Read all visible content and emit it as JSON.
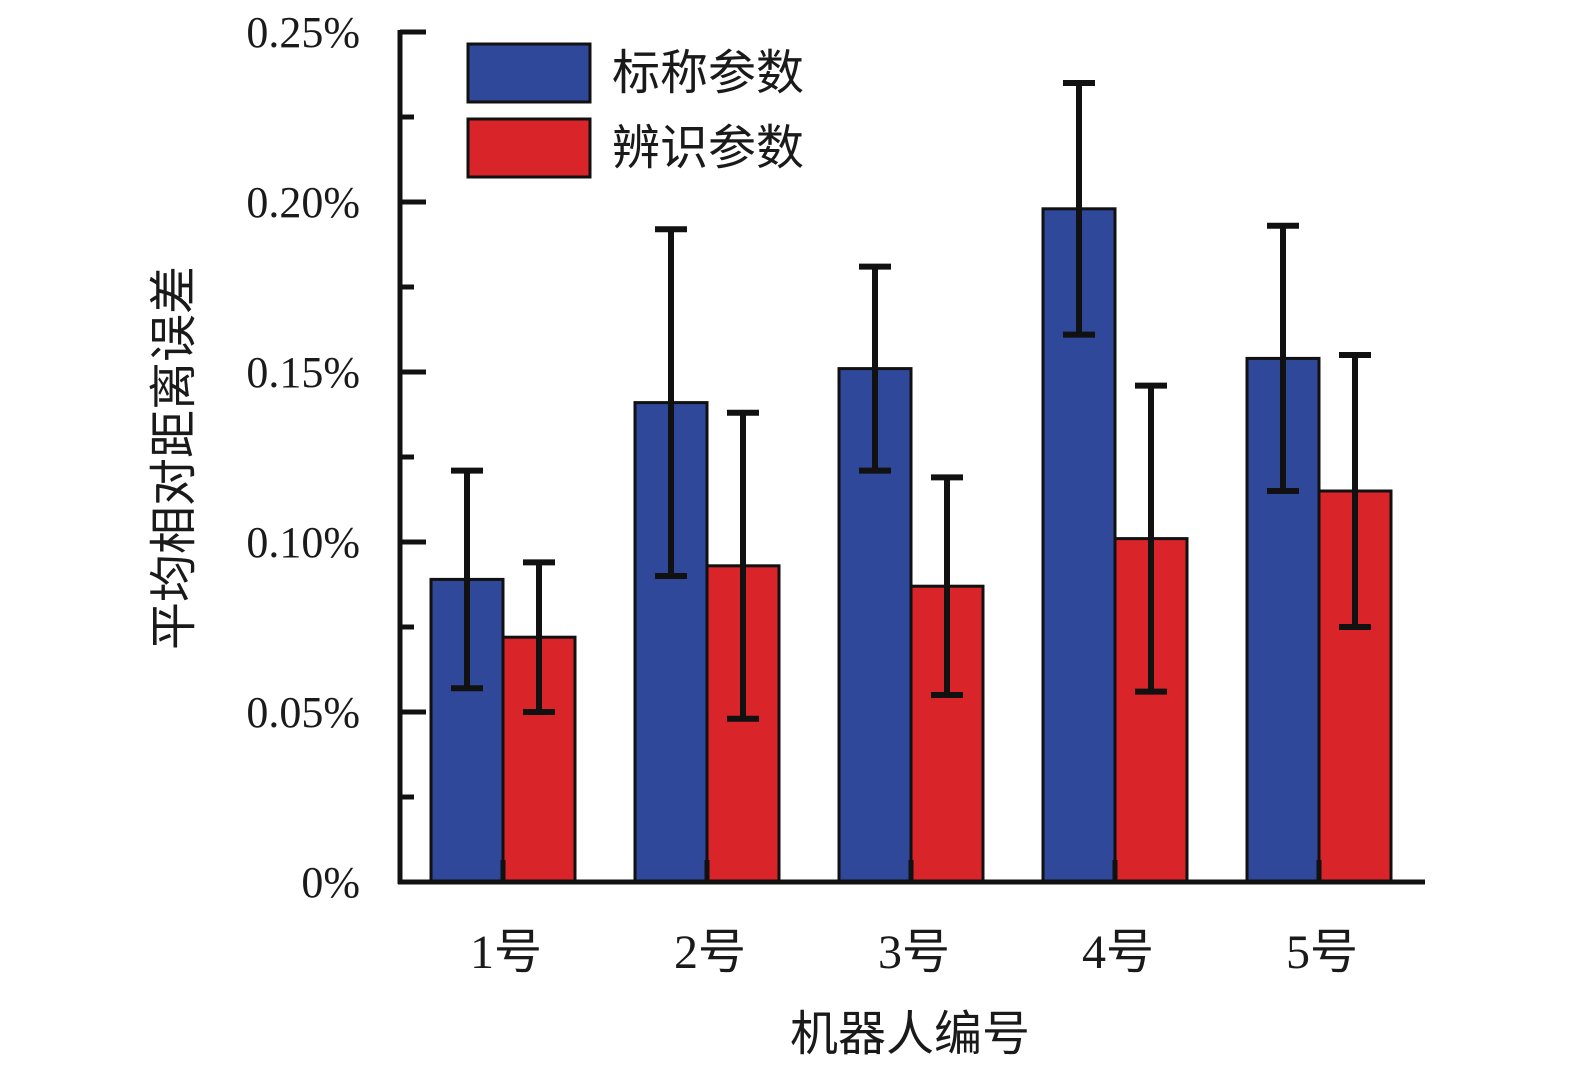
{
  "chart_data": {
    "type": "bar",
    "categories": [
      "1号",
      "2号",
      "3号",
      "4号",
      "5号"
    ],
    "series": [
      {
        "name": "标称参数",
        "color": "#30489a",
        "values": [
          0.089,
          0.141,
          0.151,
          0.198,
          0.154
        ],
        "error_low": [
          0.057,
          0.09,
          0.121,
          0.161,
          0.115
        ],
        "error_high": [
          0.121,
          0.192,
          0.181,
          0.235,
          0.193
        ]
      },
      {
        "name": "辨识参数",
        "color": "#d9252a",
        "values": [
          0.072,
          0.093,
          0.087,
          0.101,
          0.115
        ],
        "error_low": [
          0.05,
          0.048,
          0.055,
          0.056,
          0.075
        ],
        "error_high": [
          0.094,
          0.138,
          0.119,
          0.146,
          0.155
        ]
      }
    ],
    "title": "",
    "xlabel": "机器人编号",
    "ylabel": "平均相对距离误差",
    "ylim": [
      0,
      0.25
    ],
    "yticks": [
      0,
      0.05,
      0.1,
      0.15,
      0.2,
      0.25
    ],
    "ytick_labels": [
      "0%",
      "0.05%",
      "0.10%",
      "0.15%",
      "0.20%",
      "0.25%"
    ],
    "legend_position": "top-left",
    "grid": false
  }
}
